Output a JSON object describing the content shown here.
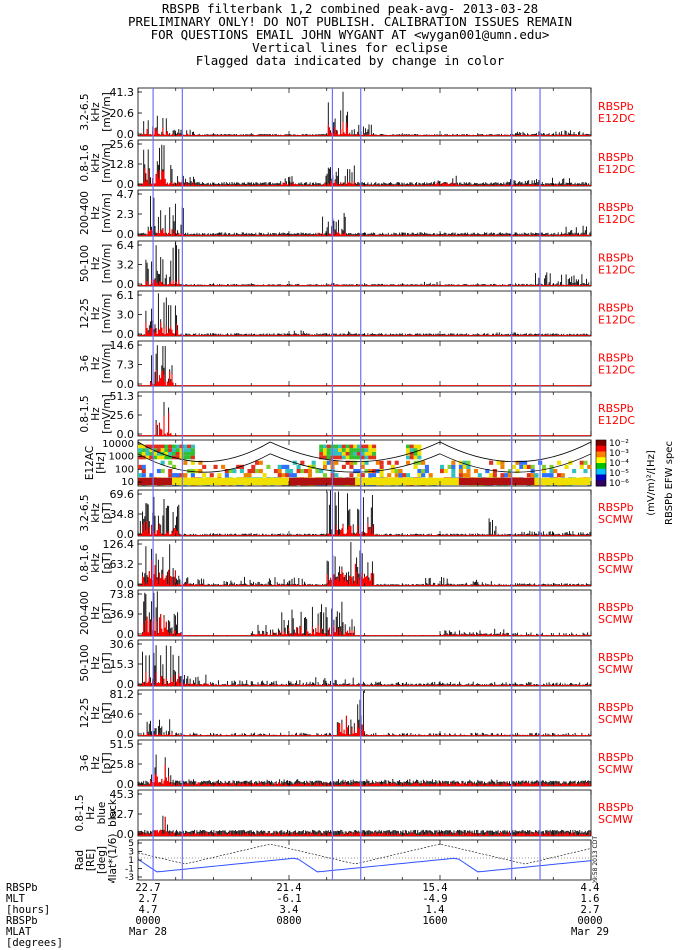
{
  "header": {
    "lines": [
      "RBSPB filterbank 1,2 combined peak-avg- 2013-03-28",
      "PRELIMINARY ONLY! DO NOT PUBLISH. CALIBRATION ISSUES REMAIN",
      "FOR QUESTIONS EMAIL JOHN WYGANT AT <wygan001@umn.edu>",
      "Vertical lines for eclipse",
      "Flagged data indicated by change in color"
    ]
  },
  "colors": {
    "trace": "#000000",
    "flagged": "#ff0000",
    "eclipse": "#7070ff",
    "label": "#ff0000",
    "mlat_line": "#3050ff"
  },
  "chart_data": {
    "type": "line",
    "x_unit": "hours since 2013-03-28 0000",
    "xlim": [
      0,
      24
    ],
    "eclipse_lines_hours": [
      0.8,
      2.35,
      10.3,
      11.8,
      19.8,
      21.3
    ],
    "panels": [
      {
        "ylabel": [
          "3.2-6.5",
          "kHz",
          "[mV/m]"
        ],
        "ticks": [
          "41.3",
          "20.6",
          "0.0"
        ],
        "ymax": 41.3,
        "side": [
          "RBSPb",
          "E12DC"
        ],
        "bursts": [
          [
            0.3,
            1.6,
            20,
            0.4,
            8
          ],
          [
            1.6,
            3,
            6,
            0.2,
            2
          ],
          [
            10,
            11.2,
            41,
            0.5,
            12
          ],
          [
            11.2,
            12.5,
            10,
            0.3,
            2
          ],
          [
            19.5,
            24,
            5,
            0.2,
            1
          ]
        ],
        "base": 1.2
      },
      {
        "ylabel": [
          "0.8-1.6",
          "kHz",
          "[mV/m]"
        ],
        "ticks": [
          "25.6",
          "12.8",
          "0.0"
        ],
        "ymax": 25.6,
        "side": [
          "RBSPb",
          "E12DC"
        ],
        "bursts": [
          [
            0.2,
            1.8,
            24,
            0.4,
            10
          ],
          [
            1.8,
            3,
            8,
            0.2,
            3
          ],
          [
            7.5,
            8.5,
            8,
            0.2,
            2
          ],
          [
            9.8,
            11.5,
            12,
            0.3,
            3
          ],
          [
            15.5,
            17,
            6,
            0.2,
            2
          ],
          [
            19.5,
            21,
            4,
            0.2,
            1
          ],
          [
            21,
            23,
            5,
            0.2,
            1
          ]
        ],
        "base": 1.5
      },
      {
        "ylabel": [
          "200-400",
          "Hz",
          "[mV/m]"
        ],
        "ticks": [
          "4.7",
          "2.3",
          "0.0"
        ],
        "ymax": 4.7,
        "side": [
          "RBSPb",
          "E12DC"
        ],
        "bursts": [
          [
            0.5,
            2,
            4.5,
            0.2,
            0.8
          ],
          [
            2,
            2.5,
            3,
            0.1,
            0.3
          ],
          [
            9.5,
            11,
            2.6,
            0.2,
            0.5
          ],
          [
            22.5,
            24,
            1.2,
            0.1,
            0.2
          ]
        ],
        "base": 0.25
      },
      {
        "ylabel": [
          "50-100",
          "Hz",
          "[mV/m]"
        ],
        "ticks": [
          "6.4",
          "3.2",
          "0.0"
        ],
        "ymax": 6.4,
        "side": [
          "RBSPb",
          "E12DC"
        ],
        "bursts": [
          [
            0.4,
            2.2,
            6.3,
            0.2,
            1
          ],
          [
            10,
            11,
            1.2,
            0.05,
            0.2
          ],
          [
            15,
            16,
            0.8,
            0.05,
            0.1
          ],
          [
            21,
            24,
            2,
            0.05,
            0.2
          ]
        ],
        "base": 0.2
      },
      {
        "ylabel": [
          "12-25",
          "Hz",
          "[mV/m]"
        ],
        "ticks": [
          "6.1",
          "3.0",
          "0.0"
        ],
        "ymax": 6.1,
        "side": [
          "RBSPb",
          "E12DC"
        ],
        "bursts": [
          [
            0.4,
            2.2,
            6,
            0.3,
            2
          ],
          [
            8,
            9,
            0.8,
            0.05,
            0.2
          ],
          [
            11,
            12,
            0.7,
            0.05,
            0.1
          ],
          [
            19,
            20,
            0.6,
            0.05,
            0.1
          ]
        ],
        "base": 0.25
      },
      {
        "ylabel": [
          "3-6",
          "Hz",
          "[mV/m]"
        ],
        "ticks": [
          "14.6",
          "7.3",
          "0.0"
        ],
        "ymax": 14.6,
        "side": [
          "RBSPb",
          "E12DC"
        ],
        "bursts": [
          [
            0.6,
            1.9,
            14.5,
            0.2,
            6
          ]
        ],
        "base": 0.0
      },
      {
        "ylabel": [
          "0.8-1.5",
          "Hz",
          "[mV/m]"
        ],
        "ticks": [
          "51.3",
          "25.6",
          "0.0"
        ],
        "ymax": 51.3,
        "side": [
          "RBSPb",
          "E12DC"
        ],
        "bursts": [
          [
            0.9,
            1.8,
            51,
            0.2,
            30
          ]
        ],
        "base": 0.0
      },
      {
        "ylabel": [
          "E12AC",
          "[Hz]"
        ],
        "ticks": [
          "10000",
          "1000",
          "100",
          "10"
        ],
        "spectrogram": true,
        "colorbar_ticks": [
          "10⁻²",
          "10⁻³",
          "10⁻⁴",
          "10⁻⁵",
          "10⁻⁶"
        ],
        "colorbar_label": "(mV/m)²/[Hz]",
        "colorbar_title": "RBSPb EFW spec"
      },
      {
        "ylabel": [
          "3.2-6.5",
          "kHz",
          "[pT]"
        ],
        "ticks": [
          "69.6",
          "34.8",
          "0.0"
        ],
        "ymax": 69.6,
        "side": [
          "RBSPb",
          "SCMW"
        ],
        "bursts": [
          [
            0,
            2.2,
            60,
            2,
            25
          ],
          [
            10,
            12.5,
            69,
            3,
            20
          ],
          [
            18.5,
            19,
            30,
            1,
            2
          ],
          [
            20,
            24,
            8,
            1,
            1
          ]
        ],
        "base": 2.5
      },
      {
        "ylabel": [
          "0.8-1.6",
          "kHz",
          "[pT]"
        ],
        "ticks": [
          "126.4",
          "63.2",
          "0.0"
        ],
        "ymax": 126.4,
        "side": [
          "RBSPb",
          "SCMW"
        ],
        "bursts": [
          [
            0.2,
            2,
            126,
            30,
            80
          ],
          [
            2,
            3.5,
            30,
            2,
            8
          ],
          [
            4.5,
            9,
            25,
            2,
            4
          ],
          [
            10,
            12.5,
            126,
            25,
            70
          ],
          [
            15,
            16.5,
            25,
            2,
            5
          ],
          [
            17,
            19,
            18,
            2,
            3
          ],
          [
            20,
            24,
            8,
            2,
            2
          ]
        ],
        "base": 4
      },
      {
        "ylabel": [
          "200-400",
          "Hz",
          "[pT]"
        ],
        "ticks": [
          "73.8",
          "36.9",
          "0.0"
        ],
        "ymax": 73.8,
        "side": [
          "RBSPb",
          "SCMW"
        ],
        "bursts": [
          [
            0.2,
            1.6,
            73,
            8,
            40
          ],
          [
            1.6,
            2.3,
            40,
            4,
            10
          ],
          [
            6,
            7.5,
            20,
            2,
            6
          ],
          [
            7.5,
            11.5,
            55,
            4,
            18
          ],
          [
            16,
            17.5,
            10,
            2,
            3
          ],
          [
            17.5,
            19.5,
            12,
            3,
            4
          ],
          [
            19.5,
            24,
            6,
            1,
            1
          ]
        ],
        "base": 1
      },
      {
        "ylabel": [
          "50-100",
          "Hz",
          "[pT]"
        ],
        "ticks": [
          "30.6",
          "15.3",
          "0.0"
        ],
        "ymax": 30.6,
        "side": [
          "RBSPb",
          "SCMW"
        ],
        "bursts": [
          [
            0.2,
            2.2,
            30,
            2,
            10
          ],
          [
            2.2,
            4,
            8,
            1,
            3
          ],
          [
            4,
            9,
            4,
            0.5,
            1
          ],
          [
            9,
            12,
            6,
            0.5,
            1
          ],
          [
            12,
            24,
            3,
            0.5,
            0.5
          ]
        ],
        "base": 1
      },
      {
        "ylabel": [
          "12-25",
          "Hz",
          "[pT]"
        ],
        "ticks": [
          "81.2",
          "40.6",
          "0.0"
        ],
        "ymax": 81.2,
        "side": [
          "RBSPb",
          "SCMW"
        ],
        "bursts": [
          [
            0.3,
            1.8,
            30,
            1,
            6
          ],
          [
            10.5,
            12,
            80,
            2,
            40
          ],
          [
            2,
            24,
            6,
            0.5,
            1
          ]
        ],
        "base": 1.5
      },
      {
        "ylabel": [
          "3-6",
          "Hz",
          "[pT]"
        ],
        "ticks": [
          "51.5",
          "25.8",
          "0.0"
        ],
        "ymax": 51.5,
        "side": [
          "RBSPb",
          "SCMW"
        ],
        "bursts": [
          [
            0.6,
            1.8,
            51,
            3,
            30
          ],
          [
            1.8,
            24,
            8,
            4,
            4
          ]
        ],
        "base": 4
      },
      {
        "ylabel": [
          "0.8-1.5",
          "Hz",
          "blue",
          "black"
        ],
        "ticks": [
          "45.3",
          "22.7",
          "0.0"
        ],
        "ymax": 45.3,
        "side": [
          "RBSPb",
          "SCMW"
        ],
        "bursts": [
          [
            0.9,
            1.6,
            45,
            4,
            40
          ],
          [
            0,
            24,
            6,
            4,
            4
          ]
        ],
        "base": 4
      },
      {
        "ylabel": [
          "Rad",
          "[RE]",
          "[deg]",
          "Mlat*(1/6)"
        ],
        "ticks": [
          "5",
          "3",
          "1",
          "-1",
          "-3"
        ],
        "orbit": true
      }
    ]
  },
  "footer": {
    "labels": [
      "RBSPb",
      "MLT",
      "[hours]",
      "RBSPb",
      "MLAT",
      "[degrees]"
    ],
    "columns": [
      {
        "rows": [
          "22.7",
          "2.7",
          "4.7",
          "0000",
          "Mar 28"
        ]
      },
      {
        "rows": [
          "21.4",
          "-6.1",
          "3.4",
          "0800",
          ""
        ]
      },
      {
        "rows": [
          "15.4",
          "-4.9",
          "1.4",
          "1600",
          ""
        ]
      },
      {
        "rows": [
          "4.4",
          "1.6",
          "2.7",
          "0000",
          "Mar 29"
        ]
      }
    ]
  },
  "stamp": "Sun Mar 31 16:09:58 2013 CDT"
}
